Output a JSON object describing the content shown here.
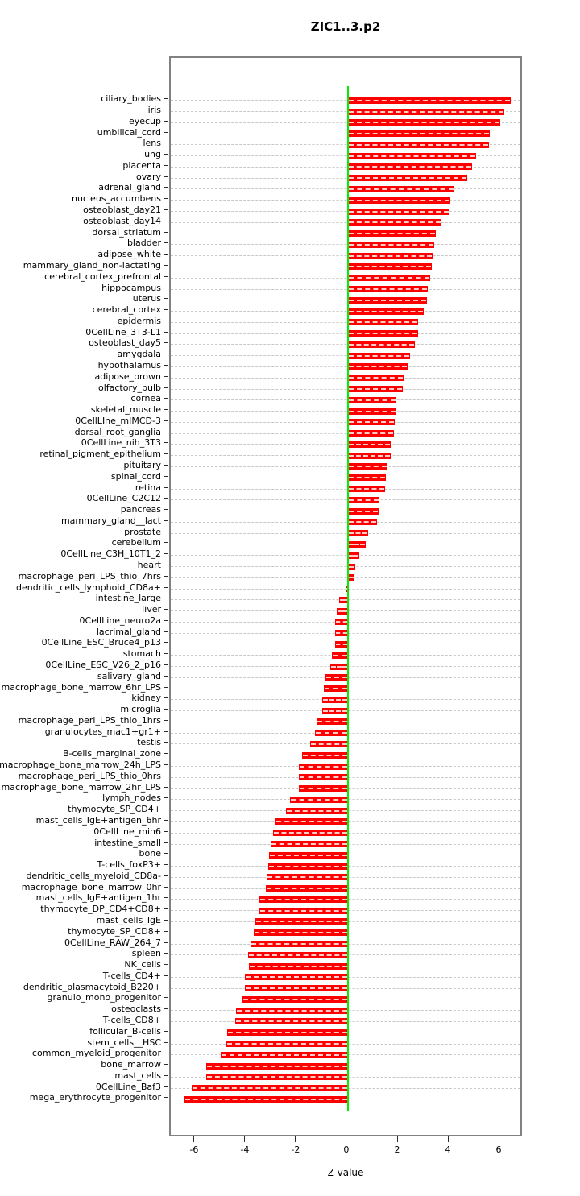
{
  "title": "ZIC1..3.p2",
  "chart_data": {
    "type": "bar",
    "orientation": "horizontal",
    "title": "ZIC1..3.p2",
    "xlabel": "Z-value",
    "ylabel": "",
    "xlim": [
      -6.98,
      6.92
    ],
    "x_ticks": [
      -6,
      -4,
      -2,
      0,
      2,
      4,
      6
    ],
    "grid": "dashed-horizontal",
    "bar_color": "#ff0000",
    "zero_line_color": "#00ee00",
    "categories": [
      "ciliary_bodies",
      "iris",
      "eyecup",
      "umbilical_cord",
      "lens",
      "lung",
      "placenta",
      "ovary",
      "adrenal_gland",
      "nucleus_accumbens",
      "osteoblast_day21",
      "osteoblast_day14",
      "dorsal_striatum",
      "bladder",
      "adipose_white",
      "mammary_gland_non-lactating",
      "cerebral_cortex_prefrontal",
      "hippocampus",
      "uterus",
      "cerebral_cortex",
      "epidermis",
      "0CellLine_3T3-L1",
      "osteoblast_day5",
      "amygdala",
      "hypothalamus",
      "adipose_brown",
      "olfactory_bulb",
      "cornea",
      "skeletal_muscle",
      "0CellLIne_mIMCD-3",
      "dorsal_root_ganglia",
      "0CellLine_nih_3T3",
      "retinal_pigment_epithelium",
      "pituitary",
      "spinal_cord",
      "retina",
      "0CellLine_C2C12",
      "pancreas",
      "mammary_gland__lact",
      "prostate",
      "cerebellum",
      "0CellLine_C3H_10T1_2",
      "heart",
      "macrophage_peri_LPS_thio_7hrs",
      "dendritic_cells_lymphoid_CD8a+",
      "intestine_large",
      "liver",
      "0CellLine_neuro2a",
      "lacrimal_gland",
      "0CellLine_ESC_Bruce4_p13",
      "stomach",
      "0CellLine_ESC_V26_2_p16",
      "salivary_gland",
      "macrophage_bone_marrow_6hr_LPS",
      "kidney",
      "microglia",
      "macrophage_peri_LPS_thio_1hrs",
      "granulocytes_mac1+gr1+",
      "testis",
      "B-cells_marginal_zone",
      "macrophage_bone_marrow_24h_LPS",
      "macrophage_peri_LPS_thio_0hrs",
      "macrophage_bone_marrow_2hr_LPS",
      "lymph_nodes",
      "thymocyte_SP_CD4+",
      "mast_cells_IgE+antigen_6hr",
      "0CellLine_min6",
      "intestine_small",
      "bone",
      "T-cells_foxP3+",
      "dendritic_cells_myeloid_CD8a-",
      "macrophage_bone_marrow_0hr",
      "mast_cells_IgE+antigen_1hr",
      "thymocyte_DP_CD4+CD8+",
      "mast_cells_IgE",
      "thymocyte_SP_CD8+",
      "0CellLine_RAW_264_7",
      "spleen",
      "NK_cells",
      "T-cells_CD4+",
      "dendritic_plasmacytoid_B220+",
      "granulo_mono_progenitor",
      "osteoclasts",
      "T-cells_CD8+",
      "follicular_B-cells",
      "stem_cells__HSC",
      "common_myeloid_progenitor",
      "bone_marrow",
      "mast_cells",
      "0CellLine_Baf3",
      "mega_erythrocyte_progenitor"
    ],
    "values": [
      6.4,
      6.15,
      6.0,
      5.6,
      5.55,
      5.05,
      4.9,
      4.7,
      4.2,
      4.05,
      4.0,
      3.7,
      3.45,
      3.4,
      3.35,
      3.3,
      3.25,
      3.15,
      3.1,
      3.0,
      2.75,
      2.75,
      2.65,
      2.45,
      2.35,
      2.2,
      2.15,
      1.9,
      1.9,
      1.85,
      1.8,
      1.7,
      1.7,
      1.55,
      1.5,
      1.45,
      1.25,
      1.2,
      1.15,
      0.8,
      0.7,
      0.45,
      0.3,
      0.25,
      -0.1,
      -0.35,
      -0.45,
      -0.5,
      -0.5,
      -0.5,
      -0.65,
      -0.7,
      -0.9,
      -0.95,
      -1.0,
      -1.0,
      -1.25,
      -1.3,
      -1.5,
      -1.8,
      -1.95,
      -1.95,
      -1.95,
      -2.3,
      -2.45,
      -2.85,
      -2.95,
      -3.05,
      -3.1,
      -3.15,
      -3.2,
      -3.25,
      -3.5,
      -3.5,
      -3.65,
      -3.7,
      -3.85,
      -3.95,
      -3.9,
      -4.05,
      -4.05,
      -4.15,
      -4.4,
      -4.45,
      -4.75,
      -4.8,
      -5.0,
      -5.6,
      -5.6,
      -6.15,
      -6.45
    ]
  }
}
